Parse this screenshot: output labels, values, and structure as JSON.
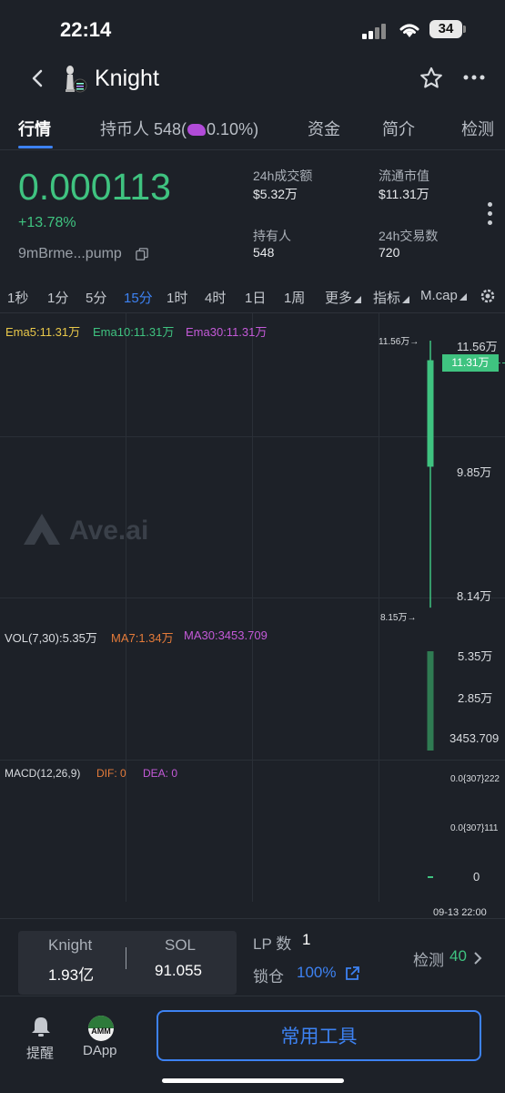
{
  "status_bar": {
    "time": "22:14",
    "battery": "34"
  },
  "header": {
    "title": "Knight"
  },
  "tabs": [
    {
      "label": "行情",
      "active": true
    },
    {
      "label": "持币人 548(",
      "suffix": "0.10%)"
    },
    {
      "label": "资金"
    },
    {
      "label": "简介"
    },
    {
      "label": "检测"
    }
  ],
  "price": {
    "value": "0.000113",
    "change": "+13.78%",
    "address": "9mBrme...pump"
  },
  "stats": {
    "volume_label": "24h成交额",
    "volume": "$5.32万",
    "mcap_label": "流通市值",
    "mcap": "$11.31万",
    "holders_label": "持有人",
    "holders": "548",
    "tx_label": "24h交易数",
    "tx": "720"
  },
  "timeframes": [
    "1秒",
    "1分",
    "5分",
    "15分",
    "1时",
    "4时",
    "1日",
    "1周",
    "更多",
    "指标",
    "M.cap"
  ],
  "active_timeframe": "15分",
  "chart": {
    "ema5": "Ema5:11.31万",
    "ema10": "Ema10:11.31万",
    "ema30": "Ema30:11.31万",
    "watermark": "Ave.ai",
    "high_marker": "11.56万→",
    "low_marker": "8.15万→",
    "price_axis": [
      "11.56万",
      "9.85万",
      "8.14万"
    ],
    "current_price_tag": "11.31万",
    "vol_label": "VOL(7,30):5.35万",
    "vol_ma7": "MA7:1.34万",
    "vol_ma30": "MA30:3453.709",
    "vol_axis": [
      "5.35万",
      "2.85万",
      "3453.709"
    ],
    "macd_label": "MACD(12,26,9)",
    "macd_dif": "DIF: 0",
    "macd_dea": "DEA: 0",
    "macd_axis": [
      "0.0{307}222",
      "0.0{307}111",
      "0"
    ],
    "time_label": "09-13 22:00"
  },
  "chart_data": {
    "type": "candlestick",
    "candles": [
      {
        "time": "09-13 22:00",
        "open": 99500,
        "high": 115600,
        "low": 81500,
        "close": 113100
      }
    ],
    "volume": [
      53500
    ],
    "ylim_price": [
      81400,
      115600
    ],
    "ylim_volume": [
      3453.709,
      53500
    ]
  },
  "pool": {
    "token_name": "Knight",
    "token_amount": "1.93亿",
    "quote_name": "SOL",
    "quote_amount": "91.055",
    "lp_label": "LP 数",
    "lp_value": "1",
    "lock_label": "锁仓",
    "lock_value": "100%",
    "check_label": "检测",
    "check_value": "40"
  },
  "bottom_nav": {
    "alert_label": "提醒",
    "dapp_label": "DApp",
    "dapp_badge": "AMM",
    "tools_label": "常用工具"
  },
  "colors": {
    "green": "#3fc380",
    "blue": "#3d82f2",
    "bg": "#1d2128"
  }
}
